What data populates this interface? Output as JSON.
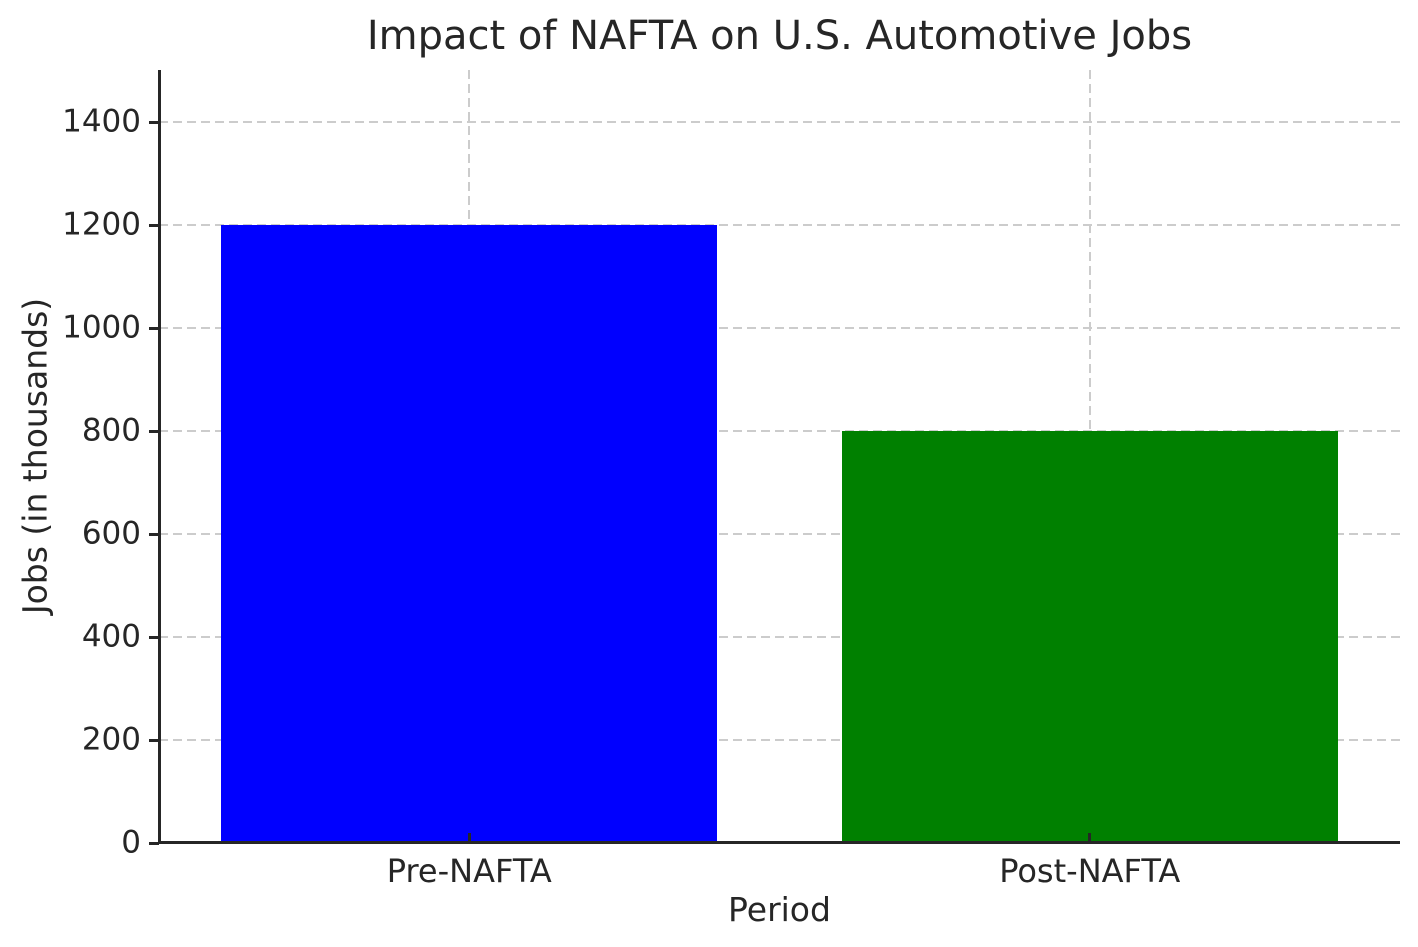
{
  "chart_data": {
    "type": "bar",
    "title": "Impact of NAFTA on U.S. Automotive Jobs",
    "xlabel": "Period",
    "ylabel": "Jobs (in thousands)",
    "categories": [
      "Pre-NAFTA",
      "Post-NAFTA"
    ],
    "values": [
      1200,
      800
    ],
    "bar_colors": [
      "#0000ff",
      "#008000"
    ],
    "bar_width_fraction": 0.8,
    "ylim": [
      0,
      1500
    ],
    "yticks": [
      0,
      200,
      400,
      600,
      800,
      1000,
      1200,
      1400
    ],
    "legend": "none",
    "grid": {
      "horizontal": true,
      "vertical_at_category_centers": true,
      "line_style": "dashed",
      "color": "#cccccc"
    },
    "style": {
      "background": "#ffffff",
      "text_color": "#262626",
      "spine_color": "#262626",
      "visible_spines": [
        "left",
        "bottom"
      ]
    }
  }
}
